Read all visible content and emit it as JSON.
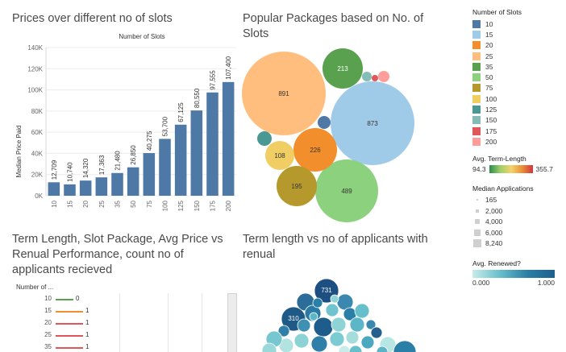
{
  "bar_title": "Prices over different no of slots",
  "bubble_title": "Popular Packages based on No. of Slots",
  "term_title": "Term Length, Slot Package, Avg Price vs Renual Performance, count no of applicants recieved",
  "scatter_title": "Term length vs no of applicants with renual",
  "chart_data": [
    {
      "type": "bar",
      "title": "Number of Slots",
      "ylabel": "Median Price Paid",
      "categories": [
        "10",
        "15",
        "20",
        "25",
        "35",
        "50",
        "75",
        "100",
        "125",
        "150",
        "175",
        "200"
      ],
      "values": [
        12709,
        10740,
        14320,
        17363,
        21480,
        26850,
        40275,
        53700,
        67125,
        80550,
        97555,
        107400
      ],
      "value_labels": [
        "12,709",
        "10,740",
        "14,320",
        "17,363",
        "21,480",
        "26,850",
        "40,275",
        "53,700",
        "67,125",
        "80,550",
        "97,555",
        "107,400"
      ],
      "yticks": [
        "0K",
        "20K",
        "40K",
        "60K",
        "80K",
        "100K",
        "120K",
        "140K"
      ],
      "ylim": [
        0,
        140000
      ],
      "color": "#4e79a7"
    },
    {
      "type": "bubble",
      "labels": [
        "891",
        "873",
        "489",
        "226",
        "195",
        "108",
        "213"
      ],
      "values": [
        891,
        873,
        489,
        226,
        195,
        108,
        213
      ],
      "categories": [
        "25",
        "15",
        "50",
        "20",
        "75",
        "100",
        "35"
      ]
    }
  ],
  "term_panel": {
    "header": "Number of ...",
    "rows": [
      {
        "slots": "10",
        "value": "0",
        "color": "#59a14f"
      },
      {
        "slots": "15",
        "value": "1",
        "color": "#f28e2b"
      },
      {
        "slots": "20",
        "value": "1",
        "color": "#e15759"
      },
      {
        "slots": "25",
        "value": "1",
        "color": "#e15759"
      },
      {
        "slots": "35",
        "value": "1",
        "color": "#e15759"
      }
    ]
  },
  "scatter_labels": [
    "731",
    "310"
  ],
  "legend": {
    "slots_title": "Number of Slots",
    "slots": [
      {
        "label": "10",
        "color": "#4e79a7"
      },
      {
        "label": "15",
        "color": "#a0cbe8"
      },
      {
        "label": "20",
        "color": "#f28e2b"
      },
      {
        "label": "25",
        "color": "#ffbe7d"
      },
      {
        "label": "35",
        "color": "#59a14f"
      },
      {
        "label": "50",
        "color": "#8cd17d"
      },
      {
        "label": "75",
        "color": "#b6992d"
      },
      {
        "label": "100",
        "color": "#f1ce63"
      },
      {
        "label": "125",
        "color": "#499894"
      },
      {
        "label": "150",
        "color": "#86bcb6"
      },
      {
        "label": "175",
        "color": "#e15759"
      },
      {
        "label": "200",
        "color": "#ff9d9a"
      }
    ],
    "term_title": "Avg. Term-Length",
    "term_min": "94.3",
    "term_max": "355.7",
    "apps_title": "Median Applications",
    "apps": [
      "165",
      "2,000",
      "4,000",
      "6,000",
      "8,240"
    ],
    "renew_title": "Avg. Renewed?",
    "renew_min": "0.000",
    "renew_max": "1.000"
  }
}
